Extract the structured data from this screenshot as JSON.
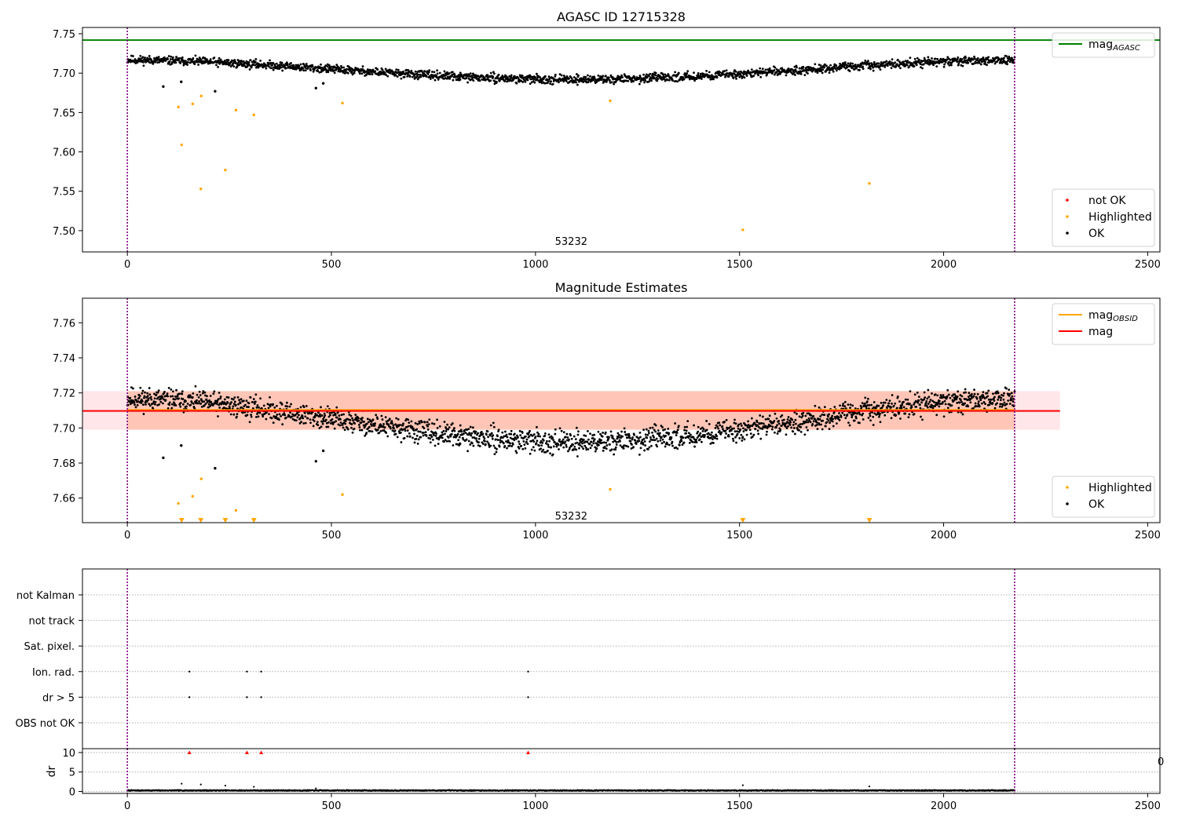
{
  "figure": {
    "background": "#ffffff"
  },
  "chart_data": [
    {
      "type": "scatter",
      "title": "AGASC ID 12715328",
      "xlim": [
        -110,
        2530
      ],
      "ylim": [
        7.473,
        7.758
      ],
      "xticks": [
        0,
        500,
        1000,
        1500,
        2000,
        2500
      ],
      "yticks": [
        7.5,
        7.55,
        7.6,
        7.65,
        7.7,
        7.75
      ],
      "ytick_labels": [
        "7.50",
        "7.55",
        "7.60",
        "7.65",
        "7.70",
        "7.75"
      ],
      "annotation": "53232",
      "annotation_pos": [
        1090,
        7.488
      ],
      "vlines": {
        "x": [
          0,
          2174
        ],
        "color": "#800080",
        "style": "dotted"
      },
      "hlines": [
        {
          "y": 7.742,
          "color": "#008000",
          "label": "mag",
          "label_sub": "AGASC"
        }
      ],
      "trend": {
        "n": 2175,
        "base": 7.7045,
        "amplitude": 0.0125,
        "scatter": 0.0035,
        "color": "#000000"
      },
      "series": [
        {
          "name": "not OK",
          "color": "#ff0000",
          "x": [],
          "y": []
        },
        {
          "name": "Highlighted",
          "color": "#ffa500",
          "x": [
            125,
            133,
            160,
            180,
            181,
            240,
            266,
            310,
            527,
            1183,
            1508,
            1818
          ],
          "y": [
            7.657,
            7.609,
            7.661,
            7.553,
            7.671,
            7.577,
            7.653,
            7.647,
            7.662,
            7.665,
            7.501,
            7.56
          ]
        },
        {
          "name": "OK",
          "color": "#000000",
          "x": [
            88,
            132,
            215,
            462,
            480,
            815
          ],
          "y": [
            7.683,
            7.689,
            7.677,
            7.681,
            7.687,
            7.692
          ]
        }
      ],
      "legends": [
        {
          "position": "top-right",
          "entries": [
            {
              "kind": "line",
              "color": "#008000",
              "label": "mag",
              "sub": "AGASC"
            }
          ]
        },
        {
          "position": "bottom-right",
          "entries": [
            {
              "kind": "dot",
              "color": "#ff0000",
              "label": "not OK"
            },
            {
              "kind": "dot",
              "color": "#ffa500",
              "label": "Highlighted"
            },
            {
              "kind": "dot",
              "color": "#000000",
              "label": "OK"
            }
          ]
        }
      ]
    },
    {
      "type": "scatter",
      "title": "Magnitude Estimates",
      "xlim": [
        -110,
        2530
      ],
      "ylim": [
        7.646,
        7.774
      ],
      "xticks": [
        0,
        500,
        1000,
        1500,
        2000,
        2500
      ],
      "yticks": [
        7.66,
        7.68,
        7.7,
        7.72,
        7.74,
        7.76
      ],
      "ytick_labels": [
        "7.66",
        "7.68",
        "7.70",
        "7.72",
        "7.74",
        "7.76"
      ],
      "annotation": "53232",
      "annotation_pos": [
        1090,
        7.6505
      ],
      "vlines": {
        "x": [
          0,
          2174
        ],
        "color": "#800080",
        "style": "dotted"
      },
      "bands": [
        {
          "x": [
            -110,
            2285
          ],
          "y": [
            7.699,
            7.721
          ],
          "color": "#ffb6c1",
          "opacity": 0.35
        },
        {
          "x": [
            0,
            2174
          ],
          "y": [
            7.699,
            7.721
          ],
          "color": "#ffa07a",
          "opacity": 0.45
        }
      ],
      "hlines": [
        {
          "y": 7.7103,
          "x": [
            0,
            2174
          ],
          "color": "#ffa500",
          "label": "mag",
          "label_sub": "OBSID"
        },
        {
          "y": 7.7097,
          "x": [
            -110,
            2285
          ],
          "color": "#ff0000",
          "label": "mag"
        }
      ],
      "trend": {
        "n": 2175,
        "base": 7.7045,
        "amplitude": 0.0125,
        "scatter": 0.0042,
        "color": "#000000"
      },
      "series": [
        {
          "name": "Highlighted",
          "color": "#ffa500",
          "x": [
            125,
            160,
            181,
            266,
            527,
            1183
          ],
          "y": [
            7.657,
            7.661,
            7.671,
            7.653,
            7.662,
            7.665
          ]
        },
        {
          "name": "Highlighted (off-axis)",
          "color": "#ffa500",
          "marker": "triangle-down",
          "x": [
            133,
            180,
            240,
            310,
            1508,
            1818
          ],
          "y": [
            7.6473,
            7.6473,
            7.6473,
            7.6473,
            7.6473,
            7.6473
          ]
        },
        {
          "name": "OK",
          "color": "#000000",
          "x": [
            88,
            132,
            215,
            462,
            480,
            815
          ],
          "y": [
            7.683,
            7.69,
            7.677,
            7.681,
            7.687,
            7.691
          ]
        }
      ],
      "legends": [
        {
          "position": "top-right",
          "entries": [
            {
              "kind": "line",
              "color": "#ffa500",
              "label": "mag",
              "sub": "OBSID"
            },
            {
              "kind": "line",
              "color": "#ff0000",
              "label": "mag"
            }
          ]
        },
        {
          "position": "bottom-right",
          "entries": [
            {
              "kind": "dot",
              "color": "#ffa500",
              "label": "Highlighted"
            },
            {
              "kind": "dot",
              "color": "#000000",
              "label": "OK"
            }
          ]
        }
      ]
    },
    {
      "type": "scatter",
      "title": "",
      "xlim": [
        -110,
        2530
      ],
      "categories": [
        "not Kalman",
        "not track",
        "Sat. pixel.",
        "Ion. rad.",
        "dr > 5",
        "OBS not OK"
      ],
      "vlines": {
        "x": [
          0,
          2174
        ],
        "color": "#800080",
        "style": "dotted"
      },
      "grid": true,
      "series": [
        {
          "name": "Ion. rad.",
          "color": "#000000",
          "x": [
            152,
            293,
            328,
            982
          ]
        },
        {
          "name": "dr > 5",
          "color": "#000000",
          "x": [
            152,
            293,
            328,
            982
          ]
        }
      ]
    },
    {
      "type": "scatter",
      "title": "",
      "ylabel": "dr",
      "xlim": [
        -110,
        2530
      ],
      "ylim": [
        -0.5,
        11
      ],
      "xticks": [
        0,
        500,
        1000,
        1500,
        2000,
        2500
      ],
      "yticks": [
        0,
        5,
        10
      ],
      "ytick_labels": [
        "0",
        "5",
        "10"
      ],
      "clipped_tick_label": "0",
      "vlines": {
        "x": [
          0,
          2174
        ],
        "color": "#800080",
        "style": "dotted"
      },
      "trend": {
        "n": 2175,
        "base": 0.25,
        "scatter": 0.12,
        "color": "#000000"
      },
      "series": [
        {
          "name": "dr above 10",
          "color": "#ff0000",
          "marker": "triangle-up",
          "x": [
            152,
            293,
            328,
            982
          ],
          "y": [
            10,
            10,
            10,
            10
          ]
        },
        {
          "name": "OK",
          "color": "#000000",
          "x": [
            133,
            180,
            240,
            310,
            1508,
            1818,
            462
          ],
          "y": [
            2.0,
            1.8,
            1.5,
            1.2,
            1.6,
            1.3,
            0.8
          ]
        }
      ]
    }
  ]
}
